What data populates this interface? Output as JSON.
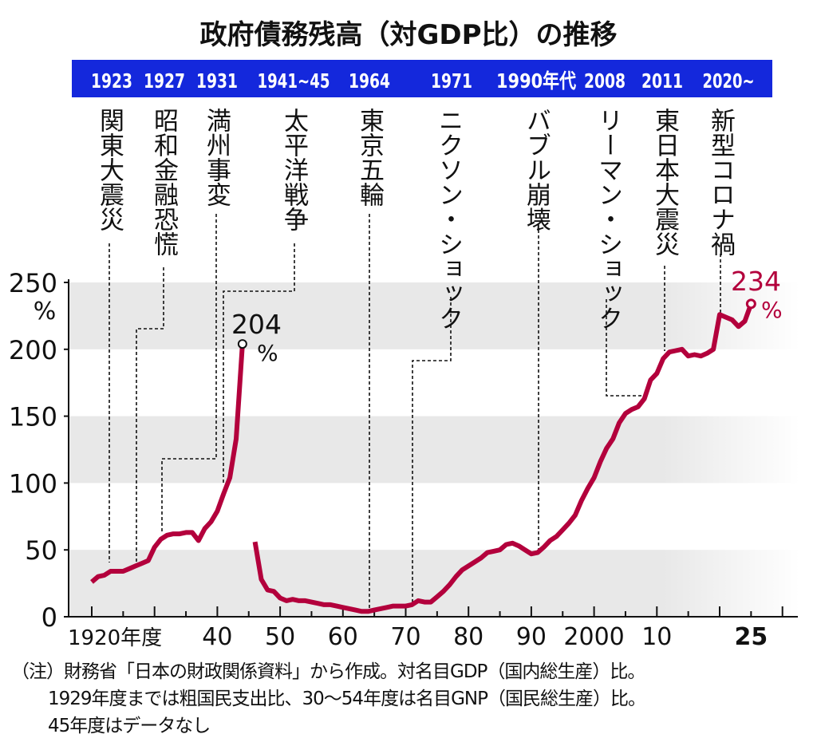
{
  "chart_data": {
    "type": "line",
    "title": "政府債務残高（対GDP比）の推移",
    "xlabel": "",
    "ylabel": "",
    "y_unit": "%",
    "ylim": [
      0,
      250
    ],
    "yticks": [
      0,
      50,
      100,
      150,
      200,
      250
    ],
    "xlim": [
      1916,
      2036
    ],
    "xtick_labels": [
      {
        "year": 1920,
        "label": "1920年度"
      },
      {
        "year": 1940,
        "label": "40"
      },
      {
        "year": 1950,
        "label": "50"
      },
      {
        "year": 1960,
        "label": "60"
      },
      {
        "year": 1970,
        "label": "70"
      },
      {
        "year": 1980,
        "label": "80"
      },
      {
        "year": 1990,
        "label": "90"
      },
      {
        "year": 2000,
        "label": "2000"
      },
      {
        "year": 2010,
        "label": "10"
      },
      {
        "year": 2025,
        "label": "25"
      }
    ],
    "grid": "alternating horizontal bands",
    "series": [
      {
        "color": "#b3003c",
        "segments": [
          {
            "x": [
              1920,
              1921,
              1922,
              1923,
              1924,
              1925,
              1926,
              1927,
              1928,
              1929,
              1930,
              1931,
              1932,
              1933,
              1934,
              1935,
              1936,
              1937,
              1938,
              1939,
              1940,
              1941,
              1942,
              1943,
              1944
            ],
            "y": [
              26,
              30,
              31,
              34,
              34,
              34,
              36,
              38,
              40,
              42,
              52,
              58,
              61,
              62,
              62,
              63,
              63,
              57,
              66,
              71,
              79,
              92,
              104,
              133,
              204
            ]
          },
          {
            "x": [
              1946,
              1947,
              1948,
              1949,
              1950,
              1951,
              1952,
              1953,
              1954,
              1955,
              1956,
              1957,
              1958,
              1959,
              1960,
              1961,
              1962,
              1963,
              1964,
              1965,
              1966,
              1967,
              1968,
              1969,
              1970,
              1971,
              1972,
              1973,
              1974,
              1975,
              1976,
              1977,
              1978,
              1979,
              1980,
              1981,
              1982,
              1983,
              1984,
              1985,
              1986,
              1987,
              1988,
              1989,
              1990,
              1991,
              1992,
              1993,
              1994,
              1995,
              1996,
              1997,
              1998,
              1999,
              2000,
              2001,
              2002,
              2003,
              2004,
              2005,
              2006,
              2007,
              2008,
              2009,
              2010,
              2011,
              2012,
              2013,
              2014,
              2015,
              2016,
              2017,
              2018,
              2019,
              2020,
              2021,
              2022,
              2023,
              2024,
              2025
            ],
            "y": [
              56,
              28,
              20,
              19,
              14,
              12,
              13,
              12,
              12,
              11,
              10,
              9,
              9,
              8,
              7,
              6,
              5,
              4,
              4,
              5,
              6,
              7,
              8,
              8,
              8,
              9,
              12,
              11,
              11,
              15,
              19,
              24,
              30,
              35,
              38,
              41,
              44,
              48,
              49,
              50,
              54,
              55,
              53,
              50,
              47,
              48,
              52,
              57,
              60,
              65,
              70,
              76,
              87,
              96,
              104,
              116,
              126,
              133,
              145,
              152,
              155,
              157,
              163,
              177,
              182,
              193,
              198,
              199,
              200,
              195,
              196,
              195,
              197,
              200,
              226,
              224,
              222,
              217,
              221,
              234
            ]
          }
        ]
      }
    ],
    "annotations": {
      "peak_1944": {
        "value": "204",
        "unit": "%",
        "year": 1944,
        "color": "#111111"
      },
      "latest_2025": {
        "value": "234",
        "unit": "%",
        "year": 2025,
        "color": "#b3003c"
      }
    },
    "timeline_banner": {
      "color": "#1428dc",
      "years": [
        "1923",
        "1927",
        "1931",
        "1941~45",
        "1964",
        "1971",
        "1990年代",
        "2008",
        "2011",
        "2020~"
      ]
    },
    "events": [
      {
        "label": "関東大震災",
        "year": 1923
      },
      {
        "label": "昭和金融恐慌",
        "year": 1927
      },
      {
        "label": "満州事変",
        "year": 1931
      },
      {
        "label": "太平洋戦争",
        "year": 1941
      },
      {
        "label": "東京五輪",
        "year": 1964
      },
      {
        "label": "ニクソン・ショック",
        "year": 1971
      },
      {
        "label": "バブル崩壊",
        "year": 1991
      },
      {
        "label": "リーマン・ショック",
        "year": 2008
      },
      {
        "label": "東日本大震災",
        "year": 2011
      },
      {
        "label": "新型コロナ禍",
        "year": 2020
      }
    ]
  },
  "notes": [
    "（注）財務省「日本の財政関係資料」から作成。対名目GDP（国内総生産）比。",
    "1929年度までは粗国民支出比、30～54年度は名目GNP（国民総生産）比。",
    "45年度はデータなし"
  ]
}
